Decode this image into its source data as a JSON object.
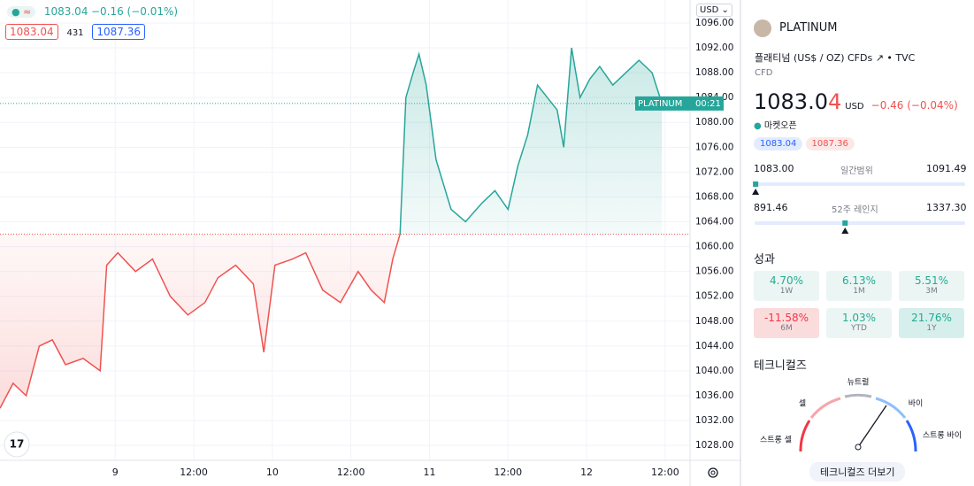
{
  "chart_data": {
    "type": "line",
    "x": [
      -17.6,
      -15.6,
      -13.6,
      -11.6,
      -9.6,
      -7.6,
      -4.9,
      -2.3,
      -1.3,
      0.4,
      3.1,
      5.7,
      8.4,
      11.1,
      13.7,
      15.7,
      18.4,
      21.1,
      22.7,
      24.4,
      27.1,
      29.1,
      31.7,
      34.4,
      37.1,
      39.1,
      41.1,
      42.4,
      43.5,
      44.4,
      45.5,
      46.4,
      47.5,
      49,
      51.3,
      53.5,
      56,
      58,
      60,
      61.5,
      63,
      64.5,
      66,
      67.5,
      68.5,
      69.7,
      71,
      72.5,
      74,
      76,
      78,
      80,
      82,
      83.5
    ],
    "series": [
      {
        "name": "PLATINUM",
        "color": "#ef5350",
        "values": [
          1034,
          1038,
          1036,
          1044,
          1045,
          1041,
          1042,
          1040,
          1057,
          1059,
          1056,
          1058,
          1052,
          1049,
          1051,
          1055,
          1057,
          1054,
          1043,
          1057,
          1058,
          1059,
          1053,
          1051,
          1056,
          1053,
          1051,
          1058,
          1062,
          null,
          null,
          null,
          null,
          null,
          null,
          null,
          null,
          null,
          null,
          null,
          null,
          null,
          null,
          null,
          null,
          null,
          null,
          null,
          null,
          null,
          null,
          null,
          null,
          null
        ]
      },
      {
        "name": "PLATINUM",
        "color": "#26a69a",
        "values": [
          null,
          null,
          null,
          null,
          null,
          null,
          null,
          null,
          null,
          null,
          null,
          null,
          null,
          null,
          null,
          null,
          null,
          null,
          null,
          null,
          null,
          null,
          null,
          null,
          null,
          null,
          null,
          null,
          1062,
          1084,
          1088,
          1091,
          1086,
          1074,
          1066,
          1064,
          1067,
          1069,
          1066,
          1073,
          1078,
          1086,
          1084,
          1082,
          1076,
          1092,
          1084,
          1087,
          1089,
          1086,
          1088,
          1090,
          1088,
          1083.04
        ]
      }
    ],
    "xlim": [
      -17.6,
      87.8
    ],
    "xticks": [
      {
        "value": 0,
        "label": "9"
      },
      {
        "value": 12,
        "label": "12:00"
      },
      {
        "value": 24,
        "label": "10"
      },
      {
        "value": 36,
        "label": "12:00"
      },
      {
        "value": 48,
        "label": "11"
      },
      {
        "value": 60,
        "label": "12:00"
      },
      {
        "value": 72,
        "label": "12"
      },
      {
        "value": 84,
        "label": "12:00"
      }
    ],
    "ylim": [
      1025.6,
      1099.7
    ],
    "yticks": [
      {
        "value": 1028,
        "label": "1028.00"
      },
      {
        "value": 1032,
        "label": "1032.00"
      },
      {
        "value": 1036,
        "label": "1036.00"
      },
      {
        "value": 1040,
        "label": "1040.00"
      },
      {
        "value": 1044,
        "label": "1044.00"
      },
      {
        "value": 1048,
        "label": "1048.00"
      },
      {
        "value": 1052,
        "label": "1052.00"
      },
      {
        "value": 1056,
        "label": "1056.00"
      },
      {
        "value": 1060,
        "label": "1060.00"
      },
      {
        "value": 1064,
        "label": "1064.00"
      },
      {
        "value": 1068,
        "label": "1068.00"
      },
      {
        "value": 1072,
        "label": "1072.00"
      },
      {
        "value": 1076,
        "label": "1076.00"
      },
      {
        "value": 1080,
        "label": "1080.00"
      },
      {
        "value": 1084,
        "label": "1084.00"
      },
      {
        "value": 1088,
        "label": "1088.00"
      },
      {
        "value": 1092,
        "label": "1092.00"
      },
      {
        "value": 1096,
        "label": "1096.00"
      }
    ],
    "previous_close": 1062,
    "last_price": 1083.04,
    "price_tag": "PLATINUM",
    "countdown": "00:21",
    "currency": "USD",
    "legend": {
      "last": "1083.04",
      "change": "−0.16 (−0.01%)",
      "bid": "1083.04",
      "spread": "431",
      "ask": "1087.36"
    }
  },
  "panel": {
    "symbol": "PLATINUM",
    "description": "플래티넘 (US$ / OZ) CFDs",
    "source": "TVC",
    "kind": "CFD",
    "price": "1083.0",
    "price_last_digit": "4",
    "currency": "USD",
    "change": "−0.46 (−0.04%)",
    "status": "마켓오픈",
    "bid": "1083.04",
    "ask": "1087.36",
    "day_range": {
      "label": "일간범위",
      "low": 1083.0,
      "low_label": "1083.00",
      "high": 1091.49,
      "high_label": "1091.49"
    },
    "week52_range": {
      "label": "52주 레인지",
      "low": 891.46,
      "low_label": "891.46",
      "high": 1337.3,
      "high_label": "1337.30"
    },
    "performance_title": "성과",
    "performance": [
      {
        "value": "4.70%",
        "period": "1W"
      },
      {
        "value": "6.13%",
        "period": "1M"
      },
      {
        "value": "5.51%",
        "period": "3M"
      },
      {
        "value": "-11.58%",
        "period": "6M"
      },
      {
        "value": "1.03%",
        "period": "YTD"
      },
      {
        "value": "21.76%",
        "period": "1Y"
      }
    ],
    "technicals_title": "테크니컬즈",
    "gauge": {
      "neutral": "뉴트럴",
      "sell": "셀",
      "buy": "바이",
      "strong_sell": "스트롱 셀",
      "strong_buy": "스트롱 바이"
    },
    "more": "테크니컬즈 더보기"
  }
}
